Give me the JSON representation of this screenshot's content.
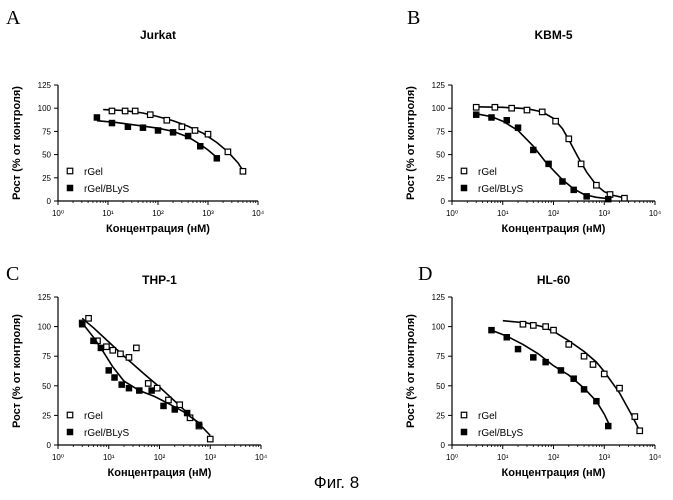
{
  "figure": {
    "caption": "Фиг. 8"
  },
  "chart_data": [
    {
      "type": "scatter",
      "panel": "A",
      "title": "Jurkat",
      "xlabel": "Концентрация (нМ)",
      "ylabel": "Рост (% от контроля)",
      "xscale": "log",
      "xlim": [
        1,
        10000
      ],
      "ylim": [
        0,
        125
      ],
      "xticks": [
        1,
        10,
        100,
        1000,
        10000
      ],
      "xtick_labels": [
        "10⁰",
        "10¹",
        "10²",
        "10³",
        "10⁴"
      ],
      "yticks": [
        0,
        25,
        50,
        75,
        100,
        125
      ],
      "legend_position": "bottom-left",
      "series": [
        {
          "name": "rGel",
          "marker": "open-square",
          "points": [
            [
              12,
              97
            ],
            [
              22,
              97
            ],
            [
              35,
              97
            ],
            [
              70,
              93
            ],
            [
              150,
              87
            ],
            [
              300,
              80
            ],
            [
              550,
              76
            ],
            [
              1000,
              72
            ],
            [
              2500,
              53
            ],
            [
              5000,
              32
            ]
          ],
          "fit": [
            [
              8,
              98.5
            ],
            [
              20,
              97.5
            ],
            [
              50,
              94.8
            ],
            [
              100,
              91
            ],
            [
              200,
              86.5
            ],
            [
              400,
              80.5
            ],
            [
              800,
              73
            ],
            [
              1500,
              63
            ],
            [
              2500,
              53
            ],
            [
              4000,
              41
            ],
            [
              5000,
              33
            ]
          ]
        },
        {
          "name": "rGel/BLyS",
          "marker": "filled-square",
          "points": [
            [
              6,
              90
            ],
            [
              12,
              84
            ],
            [
              25,
              80
            ],
            [
              50,
              79
            ],
            [
              100,
              76
            ],
            [
              200,
              74
            ],
            [
              400,
              70
            ],
            [
              700,
              59
            ],
            [
              1500,
              46
            ]
          ],
          "fit": [
            [
              6,
              86.5
            ],
            [
              15,
              84.5
            ],
            [
              40,
              81.5
            ],
            [
              100,
              78.5
            ],
            [
              200,
              75
            ],
            [
              400,
              69
            ],
            [
              700,
              61
            ],
            [
              1000,
              55
            ],
            [
              1500,
              47
            ]
          ]
        }
      ]
    },
    {
      "type": "scatter",
      "panel": "B",
      "title": "KBM-5",
      "xlabel": "Концентрация (нМ)",
      "ylabel": "Рост (% от контроля)",
      "xscale": "log",
      "xlim": [
        1,
        10000
      ],
      "ylim": [
        0,
        125
      ],
      "xticks": [
        1,
        10,
        100,
        1000,
        10000
      ],
      "xtick_labels": [
        "10⁰",
        "10¹",
        "10²",
        "10³",
        "10⁴"
      ],
      "yticks": [
        0,
        25,
        50,
        75,
        100,
        125
      ],
      "legend_position": "bottom-left",
      "series": [
        {
          "name": "rGel",
          "marker": "open-square",
          "points": [
            [
              3,
              101
            ],
            [
              7,
              101
            ],
            [
              15,
              100
            ],
            [
              30,
              98
            ],
            [
              60,
              96
            ],
            [
              110,
              86
            ],
            [
              200,
              67
            ],
            [
              350,
              40
            ],
            [
              700,
              17
            ],
            [
              1300,
              7
            ],
            [
              2500,
              3
            ]
          ],
          "fit": [
            [
              3,
              101.5
            ],
            [
              10,
              101
            ],
            [
              30,
              99.5
            ],
            [
              60,
              96
            ],
            [
              100,
              89
            ],
            [
              150,
              78
            ],
            [
              200,
              66
            ],
            [
              300,
              48
            ],
            [
              450,
              31
            ],
            [
              700,
              17
            ],
            [
              1000,
              10
            ],
            [
              1500,
              6
            ],
            [
              2500,
              3.5
            ]
          ]
        },
        {
          "name": "rGel/BLyS",
          "marker": "filled-square",
          "points": [
            [
              3,
              93
            ],
            [
              6,
              90
            ],
            [
              12,
              87
            ],
            [
              20,
              79
            ],
            [
              40,
              55
            ],
            [
              80,
              40
            ],
            [
              150,
              21
            ],
            [
              250,
              12
            ],
            [
              450,
              5
            ],
            [
              1200,
              2
            ]
          ],
          "fit": [
            [
              3,
              94
            ],
            [
              6,
              91
            ],
            [
              10,
              86
            ],
            [
              20,
              76
            ],
            [
              40,
              59
            ],
            [
              70,
              42
            ],
            [
              100,
              33
            ],
            [
              150,
              23
            ],
            [
              250,
              13
            ],
            [
              400,
              7
            ],
            [
              700,
              4
            ],
            [
              1200,
              2.5
            ]
          ]
        }
      ]
    },
    {
      "type": "scatter",
      "panel": "C",
      "title": "THP-1",
      "xlabel": "Концентрация (нМ)",
      "ylabel": "Рост (% от контроля)",
      "xscale": "log",
      "xlim": [
        1,
        10000
      ],
      "ylim": [
        0,
        125
      ],
      "xticks": [
        1,
        10,
        100,
        1000,
        10000
      ],
      "xtick_labels": [
        "10⁰",
        "10¹",
        "10²",
        "10³",
        "10⁴"
      ],
      "yticks": [
        0,
        25,
        50,
        75,
        100,
        125
      ],
      "legend_position": "bottom-left",
      "series": [
        {
          "name": "rGel",
          "marker": "open-square",
          "points": [
            [
              3,
              103
            ],
            [
              4,
              107
            ],
            [
              6,
              88
            ],
            [
              9,
              83
            ],
            [
              12,
              80
            ],
            [
              17,
              77
            ],
            [
              25,
              74
            ],
            [
              35,
              82
            ],
            [
              60,
              52
            ],
            [
              90,
              48
            ],
            [
              150,
              38
            ],
            [
              250,
              34
            ],
            [
              400,
              23
            ],
            [
              600,
              16
            ],
            [
              1000,
              5
            ]
          ],
          "fit": [
            [
              3,
              107
            ],
            [
              5,
              99
            ],
            [
              10,
              87
            ],
            [
              20,
              75
            ],
            [
              50,
              60
            ],
            [
              100,
              49
            ],
            [
              200,
              37
            ],
            [
              400,
              25
            ],
            [
              700,
              15
            ],
            [
              1000,
              8
            ]
          ]
        },
        {
          "name": "rGel/BLyS",
          "marker": "filled-square",
          "points": [
            [
              3,
              102
            ],
            [
              5,
              88
            ],
            [
              7,
              82
            ],
            [
              10,
              63
            ],
            [
              13,
              57
            ],
            [
              18,
              51
            ],
            [
              25,
              48
            ],
            [
              40,
              46
            ],
            [
              70,
              46
            ],
            [
              120,
              33
            ],
            [
              200,
              30
            ],
            [
              350,
              27
            ],
            [
              600,
              17
            ]
          ],
          "fit": [
            [
              3,
              103
            ],
            [
              5,
              91
            ],
            [
              8,
              78
            ],
            [
              12,
              66
            ],
            [
              20,
              54
            ],
            [
              40,
              46
            ],
            [
              80,
              41
            ],
            [
              150,
              35
            ],
            [
              300,
              28
            ],
            [
              500,
              21
            ],
            [
              700,
              17
            ]
          ]
        }
      ]
    },
    {
      "type": "scatter",
      "panel": "D",
      "title": "HL-60",
      "xlabel": "Концентрация (нМ)",
      "ylabel": "Рост (% от контроля)",
      "xscale": "log",
      "xlim": [
        1,
        10000
      ],
      "ylim": [
        0,
        125
      ],
      "xticks": [
        1,
        10,
        100,
        1000,
        10000
      ],
      "xtick_labels": [
        "10⁰",
        "10¹",
        "10²",
        "10³",
        "10⁴"
      ],
      "yticks": [
        0,
        25,
        50,
        75,
        100,
        125
      ],
      "legend_position": "bottom-left",
      "series": [
        {
          "name": "rGel",
          "marker": "open-square",
          "points": [
            [
              25,
              102
            ],
            [
              40,
              101
            ],
            [
              70,
              100
            ],
            [
              100,
              97
            ],
            [
              200,
              85
            ],
            [
              400,
              75
            ],
            [
              600,
              68
            ],
            [
              1000,
              60
            ],
            [
              2000,
              48
            ],
            [
              4000,
              24
            ],
            [
              5000,
              12
            ]
          ],
          "fit": [
            [
              10,
              105
            ],
            [
              30,
              103
            ],
            [
              60,
              100
            ],
            [
              100,
              96
            ],
            [
              200,
              88
            ],
            [
              400,
              79
            ],
            [
              700,
              70
            ],
            [
              1000,
              62
            ],
            [
              2000,
              44
            ],
            [
              3500,
              25
            ],
            [
              5000,
              12
            ]
          ]
        },
        {
          "name": "rGel/BLyS",
          "marker": "filled-square",
          "points": [
            [
              6,
              97
            ],
            [
              12,
              91
            ],
            [
              20,
              81
            ],
            [
              40,
              74
            ],
            [
              70,
              70
            ],
            [
              140,
              63
            ],
            [
              250,
              56
            ],
            [
              400,
              47
            ],
            [
              700,
              37
            ],
            [
              1200,
              16
            ]
          ],
          "fit": [
            [
              6,
              97
            ],
            [
              12,
              92
            ],
            [
              25,
              85
            ],
            [
              50,
              77
            ],
            [
              100,
              67
            ],
            [
              200,
              59
            ],
            [
              400,
              48
            ],
            [
              700,
              37
            ],
            [
              1000,
              26
            ],
            [
              1300,
              16
            ]
          ]
        }
      ]
    }
  ]
}
